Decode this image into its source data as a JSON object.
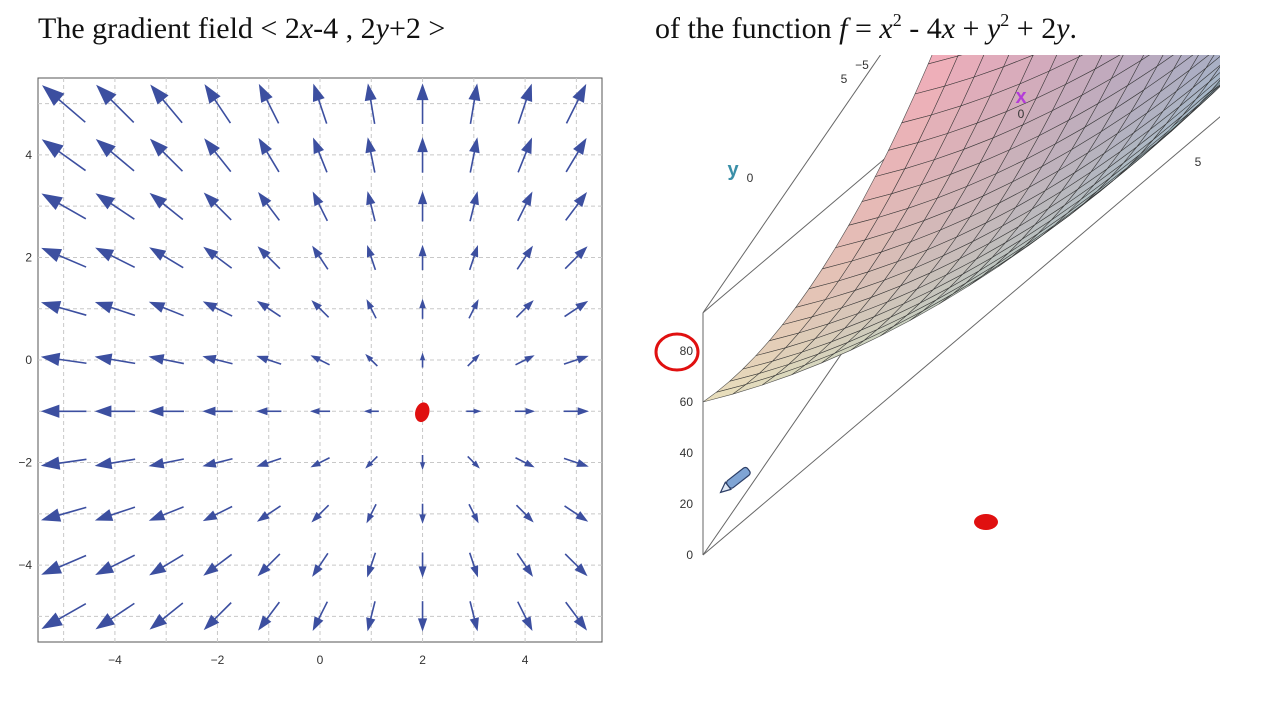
{
  "header": {
    "left": {
      "t1": "The gradient field  < 2",
      "v1": "x",
      "t2": "-4 , 2",
      "v2": "y",
      "t3": "+2 >"
    },
    "right": {
      "t1": "of the function  ",
      "f": "f",
      "t2": " = ",
      "x1": "x",
      "s1": "2",
      "t3": " - 4",
      "x2": "x",
      "t4": " + ",
      "y1": "y",
      "s2": "2",
      "t5": " + 2",
      "y2": "y",
      "t6": "."
    }
  },
  "vector_field": {
    "type": "vector_field",
    "field": "< 2x-4 , 2y+2 >",
    "x_range": [
      -5.5,
      5.5
    ],
    "y_range": [
      -5.5,
      5.5
    ],
    "x_ticks": [
      -4,
      -2,
      0,
      2,
      4
    ],
    "y_ticks": [
      4,
      2,
      0,
      -2,
      -4
    ],
    "x_tick_labels": [
      "−4",
      "−2",
      "0",
      "2",
      "4"
    ],
    "y_tick_labels": [
      "4",
      "2",
      "0",
      "−2",
      "−4"
    ],
    "arrow_color": "#3c4fa0",
    "grid": true,
    "marker": {
      "x": 2,
      "y": -1,
      "color": "#e01010"
    }
  },
  "surface_plot": {
    "function": "x^2 - 4x + y^2 + 2y",
    "x_axis_label": "x",
    "y_axis_label": "y",
    "x_ticks": [
      "−5",
      "0",
      "5"
    ],
    "y_ticks": [
      "5",
      "0"
    ],
    "z_ticks": [
      "80",
      "60",
      "40",
      "20",
      "0"
    ],
    "x_label_color": "#b43cd8",
    "y_label_color": "#3a8fa8",
    "marker_color": "#e01010",
    "annotation_color": "#e01010"
  }
}
